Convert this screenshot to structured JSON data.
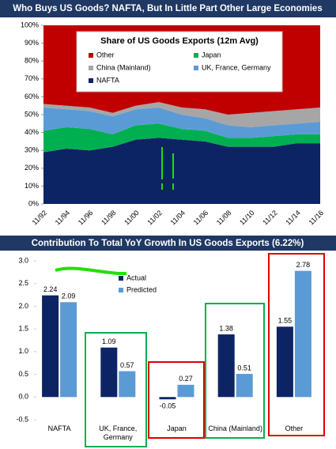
{
  "chart_data": [
    {
      "type": "stacked-area",
      "title": "Who Buys US Goods? NAFTA, But In Little Part Other Large Economies",
      "subtitle": "Share of US Goods Exports (12m Avg)",
      "categories": [
        "11/92",
        "11/94",
        "11/96",
        "11/98",
        "11/00",
        "11/02",
        "11/04",
        "11/06",
        "11/08",
        "11/10",
        "11/12",
        "11/14",
        "11/16"
      ],
      "series": [
        {
          "name": "NAFTA",
          "color": "#0d2464",
          "values": [
            29,
            31,
            30,
            32,
            36,
            37,
            36,
            35,
            32,
            32,
            32,
            34,
            34
          ]
        },
        {
          "name": "Japan",
          "color": "#00b050",
          "values": [
            12,
            12,
            12,
            7,
            8,
            8,
            6,
            6,
            5,
            5,
            6,
            5,
            5
          ]
        },
        {
          "name": "UK, France, Germany",
          "color": "#5b9bd5",
          "values": [
            13,
            10,
            10,
            10,
            9,
            9,
            8,
            7,
            7,
            6,
            6,
            6,
            7
          ]
        },
        {
          "name": "China (Mainland)",
          "color": "#a6a6a6",
          "values": [
            2,
            2,
            2,
            2,
            2,
            3,
            4,
            5,
            6,
            8,
            8,
            8,
            8
          ]
        },
        {
          "name": "Other",
          "color": "#c00000",
          "values": [
            44,
            45,
            46,
            49,
            45,
            43,
            46,
            47,
            50,
            49,
            48,
            47,
            46
          ]
        }
      ],
      "ylim": [
        0,
        100
      ],
      "yticks": [
        {
          "value": 0,
          "label": "0%"
        },
        {
          "value": 10,
          "label": "10%"
        },
        {
          "value": 20,
          "label": "20%"
        },
        {
          "value": 30,
          "label": "30%"
        },
        {
          "value": 40,
          "label": "40%"
        },
        {
          "value": 50,
          "label": "50%"
        },
        {
          "value": 60,
          "label": "60%"
        },
        {
          "value": 70,
          "label": "70%"
        },
        {
          "value": 80,
          "label": "80%"
        },
        {
          "value": 90,
          "label": "90%"
        },
        {
          "value": 100,
          "label": "100%"
        }
      ]
    },
    {
      "type": "bar",
      "title": "Contribution To Total YoY Growth In US Goods Exports (6.22%)",
      "categories": [
        "NAFTA",
        "UK, France, Germany",
        "Japan",
        "China (Mainland)",
        "Other"
      ],
      "series": [
        {
          "name": "Actual",
          "color": "#0d2464",
          "values": [
            2.24,
            1.09,
            -0.05,
            1.38,
            1.55
          ]
        },
        {
          "name": "Predicted",
          "color": "#5b9bd5",
          "values": [
            2.09,
            0.57,
            0.27,
            0.51,
            2.78
          ]
        }
      ],
      "ylim": [
        -0.5,
        3.0
      ],
      "yticks": [
        {
          "value": -0.5,
          "label": "-0.5"
        },
        {
          "value": 0,
          "label": "0.0"
        },
        {
          "value": 0.5,
          "label": "0.5"
        },
        {
          "value": 1,
          "label": "1.0"
        },
        {
          "value": 1.5,
          "label": "1.5"
        },
        {
          "value": 2,
          "label": "2.0"
        },
        {
          "value": 2.5,
          "label": "2.5"
        },
        {
          "value": 3,
          "label": "3.0"
        }
      ]
    }
  ]
}
